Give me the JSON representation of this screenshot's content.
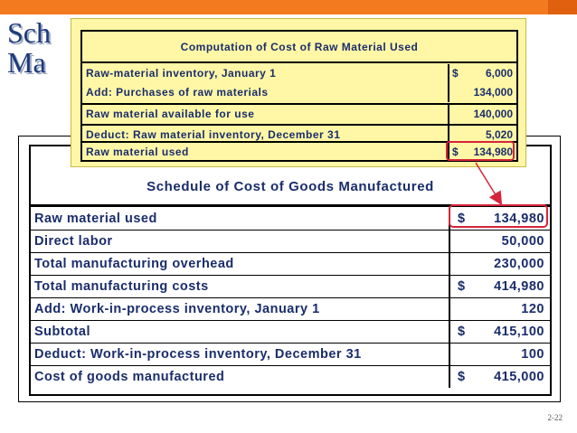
{
  "slide": {
    "title_visible": "Sch\nMa",
    "page_number": "2-22"
  },
  "popup": {
    "title": "Computation of Cost of Raw Material Used",
    "rows": [
      {
        "label": "Raw-material inventory, January 1",
        "dollar": "$",
        "value": "6,000"
      },
      {
        "label": "Add:  Purchases of raw materials",
        "dollar": "",
        "value": "134,000"
      },
      {
        "label": "Raw material available for use",
        "dollar": "",
        "value": "140,000"
      },
      {
        "label": "Deduct:  Raw material inventory, December 31",
        "dollar": "",
        "value": "5,020"
      },
      {
        "label": "Raw material used",
        "dollar": "$",
        "value": "134,980"
      }
    ]
  },
  "schedule": {
    "title": "Schedule of Cost of Goods Manufactured",
    "rows": [
      {
        "label": "Raw material used",
        "dollar": "$",
        "value": "134,980"
      },
      {
        "label": "Direct labor",
        "dollar": "",
        "value": "50,000"
      },
      {
        "label": "Total manufacturing overhead",
        "dollar": "",
        "value": "230,000"
      },
      {
        "label": "Total manufacturing costs",
        "dollar": "$",
        "value": "414,980"
      },
      {
        "label": "Add:  Work-in-process inventory, January 1",
        "dollar": "",
        "value": "120"
      },
      {
        "label": "Subtotal",
        "dollar": "$",
        "value": "415,100"
      },
      {
        "label": "Deduct:  Work-in-process inventory, December 31",
        "dollar": "",
        "value": "100"
      },
      {
        "label": "Cost of goods manufactured",
        "dollar": "$",
        "value": "415,000"
      }
    ]
  },
  "colors": {
    "accent": "#f47a1f",
    "text": "#1a2d6b",
    "highlight": "#d6243a",
    "popup_bg": "#fff7a6"
  }
}
